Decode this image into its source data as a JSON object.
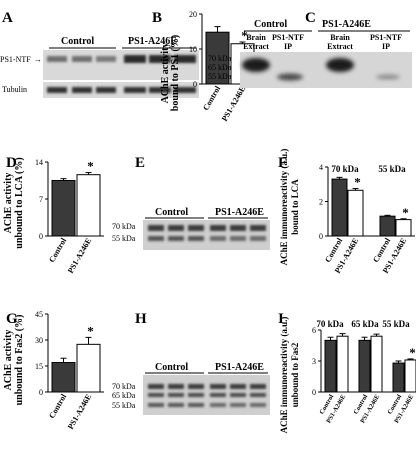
{
  "figure": {
    "panels": {
      "A": {
        "letter": "A",
        "groups": [
          "Control",
          "PS1-A246E"
        ],
        "bands": [
          "PS1-NTF",
          "Tubulin"
        ]
      },
      "B": {
        "letter": "B",
        "ylabel_1": "AChE activity",
        "ylabel_2": "bound to PS1 (%)",
        "star": "*"
      },
      "C": {
        "letter": "C",
        "groups": [
          "Control",
          "PS1-A246E"
        ],
        "lanes": [
          "Brain",
          "Extract",
          "PS1-NTF",
          "IP"
        ],
        "markers": [
          "70 kDa",
          "65 kDa",
          "55 kDa"
        ]
      },
      "D": {
        "letter": "D",
        "ylabel_1": "AChE activity",
        "ylabel_2": "unbound to LCA (%)",
        "star": "*"
      },
      "E": {
        "letter": "E",
        "groups": [
          "Control",
          "PS1-A246E"
        ],
        "markers": [
          "70 kDa",
          "55 kDa"
        ]
      },
      "F": {
        "letter": "F",
        "ylabel_1": "AChE immunoreactivity (a.u.)",
        "ylabel_2": "bound to LCA",
        "headers": [
          "70 kDa",
          "55 kDa"
        ],
        "star": "*"
      },
      "G": {
        "letter": "G",
        "ylabel_1": "AChE activity",
        "ylabel_2": "unbound to Fas2 (%)",
        "star": "*"
      },
      "H": {
        "letter": "H",
        "groups": [
          "Control",
          "PS1-A246E"
        ],
        "markers": [
          "70 kDa",
          "65 kDa",
          "55 kDa"
        ]
      },
      "I": {
        "letter": "I",
        "ylabel_1": "AChE immunoreactivity (a.u.)",
        "ylabel_2": "unbound to Fas2",
        "headers": [
          "70 kDa",
          "65 kDa",
          "55 kDa"
        ],
        "star": "*"
      }
    }
  },
  "chart_data": [
    {
      "panel": "B",
      "type": "bar",
      "categories": [
        "Control",
        "PS1-A246E"
      ],
      "values": [
        14.8,
        11.5
      ],
      "errors": [
        1.6,
        0.5
      ],
      "ylim": [
        0,
        20
      ],
      "yticks": [
        0,
        10,
        20
      ],
      "bar_colors": [
        "#3a3a3a",
        "#ffffff"
      ],
      "significant": [
        false,
        true
      ]
    },
    {
      "panel": "D",
      "type": "bar",
      "categories": [
        "Control",
        "PS1-A246E"
      ],
      "values": [
        10.5,
        11.6
      ],
      "errors": [
        0.35,
        0.4
      ],
      "ylim": [
        0,
        14
      ],
      "yticks": [
        0,
        7,
        14
      ],
      "bar_colors": [
        "#3a3a3a",
        "#ffffff"
      ],
      "significant": [
        false,
        true
      ]
    },
    {
      "panel": "F",
      "type": "bar",
      "categories": [
        "Control",
        "PS1-A246E",
        "Control",
        "PS1-A246E"
      ],
      "values": [
        3.3,
        2.65,
        1.15,
        0.95
      ],
      "errors": [
        0.1,
        0.1,
        0.05,
        0.05
      ],
      "ylim": [
        0,
        4
      ],
      "yticks": [
        0,
        2,
        4
      ],
      "bar_colors": [
        "#3a3a3a",
        "#ffffff",
        "#3a3a3a",
        "#ffffff"
      ],
      "significant": [
        false,
        true,
        false,
        true
      ]
    },
    {
      "panel": "G",
      "type": "bar",
      "categories": [
        "Control",
        "PS1-A246E"
      ],
      "values": [
        17,
        27.5
      ],
      "errors": [
        2.5,
        4
      ],
      "ylim": [
        0,
        45
      ],
      "yticks": [
        0,
        15,
        30,
        45
      ],
      "bar_colors": [
        "#3a3a3a",
        "#ffffff"
      ],
      "significant": [
        false,
        true
      ]
    },
    {
      "panel": "I",
      "type": "bar",
      "categories": [
        "Control",
        "PS1-A246E",
        "Control",
        "PS1-A246E",
        "Control",
        "PS1-A246E"
      ],
      "values": [
        5.0,
        5.4,
        5.0,
        5.4,
        2.8,
        3.1
      ],
      "errors": [
        0.3,
        0.25,
        0.3,
        0.2,
        0.2,
        0.1
      ],
      "ylim": [
        0,
        6
      ],
      "yticks": [
        0,
        3,
        6
      ],
      "bar_colors": [
        "#3a3a3a",
        "#ffffff",
        "#3a3a3a",
        "#ffffff",
        "#3a3a3a",
        "#ffffff"
      ],
      "significant": [
        false,
        false,
        false,
        false,
        false,
        true
      ]
    }
  ]
}
